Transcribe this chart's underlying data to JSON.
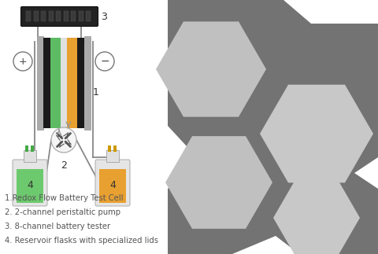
{
  "background_color": "#ffffff",
  "hex_dark": "#737373",
  "hex_window_bg": "#c8c8c8",
  "label_items": [
    "1.Redox Flow Battery Test Cell",
    "2. 2-channel peristaltic pump",
    "3. 8-channel battery tester",
    "4. Reservoir flasks with specialized lids"
  ],
  "label_color": "#555555",
  "label_fontsize": 7.2,
  "cell_green": "#5DBB63",
  "cell_orange": "#E8A030",
  "cell_black": "#1a1a1a",
  "cell_gray": "#999999",
  "membrane_color": "#e0e0e0",
  "flask_green_fill": "#6DC96E",
  "flask_orange_fill": "#E8A030",
  "wire_color": "#888888",
  "pump_bg": "#f5f5f5",
  "tester_bg": "#222222",
  "tester_slot": "#3a3a3a"
}
